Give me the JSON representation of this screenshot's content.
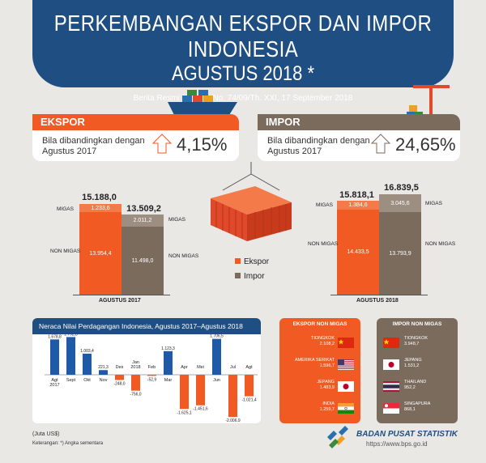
{
  "header": {
    "title_line1": "PERKEMBANGAN EKSPOR DAN IMPOR INDONESIA",
    "title_line2": "AGUSTUS 2018 *",
    "subtitle": "Berita Resmi Statistik No. 74/09/Th. XXI, 17 September 2018"
  },
  "ekspor": {
    "label": "EKSPOR",
    "compare_text_1": "Bila dibandingkan dengan",
    "compare_text_2": "Agustus 2017",
    "change": "4,15%",
    "change_percent": 4.15
  },
  "impor": {
    "label": "IMPOR",
    "compare_text_1": "Bila dibandingkan dengan",
    "compare_text_2": "Agustus 2017",
    "change": "24,65%",
    "change_percent": 24.65
  },
  "bars_2017": {
    "period": "AGUSTUS 2017",
    "ekspor_total": "15.188,0",
    "ekspor_migas": "1.233,6",
    "ekspor_nonmigas": "13.954,4",
    "impor_total": "13.509,2",
    "impor_migas": "2.011,2",
    "impor_nonmigas": "11.498,0"
  },
  "bars_2018": {
    "period": "AGUSTUS 2018",
    "ekspor_total": "15.818,1",
    "ekspor_migas": "1.384,6",
    "ekspor_nonmigas": "14.433,5",
    "impor_total": "16.839,5",
    "impor_migas": "3.045,6",
    "impor_nonmigas": "13.793,9"
  },
  "labels": {
    "migas": "MIGAS",
    "non_migas": "NON MIGAS"
  },
  "legend": {
    "ekspor": "Ekspor",
    "impor": "Impor"
  },
  "neraca": {
    "title": "Neraca Nilai Perdagangan Indonesia, Agustus 2017–Agustus 2018",
    "months": [
      "Agt 2017",
      "Sept",
      "Okt",
      "Nov",
      "Des",
      "Jan 2018",
      "Feb",
      "Mar",
      "Apr",
      "Mei",
      "Jun",
      "Jul",
      "Agt"
    ],
    "values": [
      1678.8,
      1792.0,
      1003.4,
      221.3,
      -248.0,
      -756.0,
      -52.9,
      1123.3,
      -1625.1,
      -1451.6,
      1706.5,
      -2006.9,
      -1021.4
    ],
    "value_labels": [
      "1.678,8",
      "1.792,0",
      "1.003,4",
      "221,3",
      "-248,0",
      "-756,0",
      "-52,9",
      "1.123,3",
      "-1.625,1",
      "-1.451,6",
      "1.706,5",
      "-2.006,9",
      "-1.021,4"
    ]
  },
  "ekspor_nonmigas": {
    "title": "EKSPOR NON MIGAS",
    "items": [
      {
        "country": "TIONGKOK",
        "value": "2.108,2"
      },
      {
        "country": "AMERIKA SERIKAT",
        "value": "1.596,7"
      },
      {
        "country": "JEPANG",
        "value": "1.483,9"
      },
      {
        "country": "INDIA",
        "value": "1.259,7"
      }
    ]
  },
  "impor_nonmigas": {
    "title": "IMPOR NON MIGAS",
    "items": [
      {
        "country": "TIONGKOK",
        "value": "3.948,7"
      },
      {
        "country": "JEPANG",
        "value": "1.531,2"
      },
      {
        "country": "THAILAND",
        "value": "952,2"
      },
      {
        "country": "SINGAPURA",
        "value": "868,1"
      }
    ]
  },
  "footer": {
    "unit": "(Juta US$)",
    "note": "Keterangan: *) Angka sementara",
    "org": "BADAN PUSAT STATISTIK",
    "url": "https://www.bps.go.id"
  },
  "colors": {
    "orange": "#f15a22",
    "grey_brown": "#7a6b5d",
    "navy": "#1f4f82",
    "blue_bar": "#1e5aa8"
  }
}
